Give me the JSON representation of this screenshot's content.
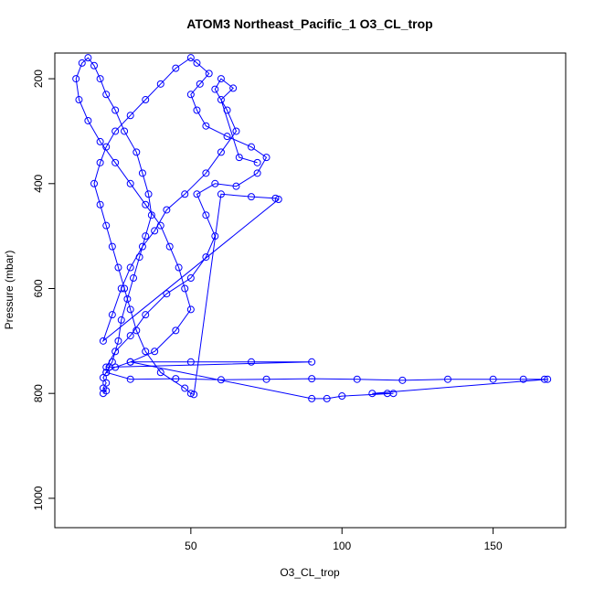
{
  "chart_data": {
    "type": "line",
    "markers": true,
    "title": "ATOM3 Northeast_Pacific_1 O3_CL_trop",
    "x_label": "O3_CL_trop",
    "y_label": "Pressure (mbar)",
    "color": "#0000ff",
    "xlim": [
      5,
      174
    ],
    "ylim": [
      1056,
      151
    ],
    "xticks": [
      50,
      100,
      150
    ],
    "yticks": [
      200,
      400,
      600,
      800,
      1000
    ],
    "x": [
      21,
      22,
      21,
      22,
      21,
      22,
      23,
      24,
      26,
      27,
      29,
      31,
      33,
      35,
      37,
      36,
      34,
      32,
      28,
      25,
      22,
      20,
      18,
      16,
      14,
      12,
      13,
      16,
      20,
      25,
      30,
      35,
      40,
      43,
      46,
      48,
      50,
      45,
      38,
      30,
      25,
      22,
      30,
      45,
      60,
      75,
      90,
      105,
      120,
      135,
      150,
      160,
      167,
      168,
      110,
      115,
      117,
      100,
      95,
      90,
      30,
      50,
      70,
      90,
      22,
      25,
      30,
      35,
      42,
      50,
      55,
      58,
      55,
      52,
      58,
      65,
      72,
      75,
      70,
      62,
      55,
      52,
      50,
      53,
      56,
      52,
      50,
      45,
      40,
      35,
      30,
      25,
      22,
      20,
      18,
      20,
      22,
      24,
      26,
      28,
      30,
      32,
      35,
      40,
      48,
      50,
      51,
      60,
      70,
      78,
      79,
      21,
      24,
      27,
      30,
      34,
      38,
      42,
      48,
      55,
      60,
      65,
      62,
      58,
      60,
      64,
      60,
      66,
      72
    ],
    "values": [
      800,
      795,
      790,
      780,
      770,
      760,
      750,
      740,
      700,
      660,
      620,
      580,
      540,
      500,
      460,
      420,
      380,
      340,
      300,
      260,
      230,
      200,
      175,
      160,
      170,
      200,
      240,
      280,
      320,
      360,
      400,
      440,
      480,
      520,
      560,
      600,
      640,
      680,
      720,
      740,
      750,
      760,
      773,
      772,
      774,
      773,
      772,
      773,
      775,
      773,
      773,
      773,
      773,
      773,
      800,
      800,
      800,
      805,
      810,
      810,
      740,
      740,
      740,
      740,
      750,
      720,
      690,
      650,
      610,
      580,
      540,
      500,
      460,
      420,
      400,
      405,
      380,
      350,
      330,
      310,
      290,
      260,
      230,
      210,
      190,
      170,
      160,
      180,
      210,
      240,
      270,
      300,
      330,
      360,
      400,
      440,
      480,
      520,
      560,
      600,
      640,
      680,
      720,
      760,
      790,
      800,
      802,
      420,
      425,
      428,
      430,
      700,
      650,
      600,
      560,
      520,
      490,
      450,
      420,
      380,
      340,
      300,
      260,
      220,
      200,
      218,
      240,
      350,
      360
    ]
  }
}
